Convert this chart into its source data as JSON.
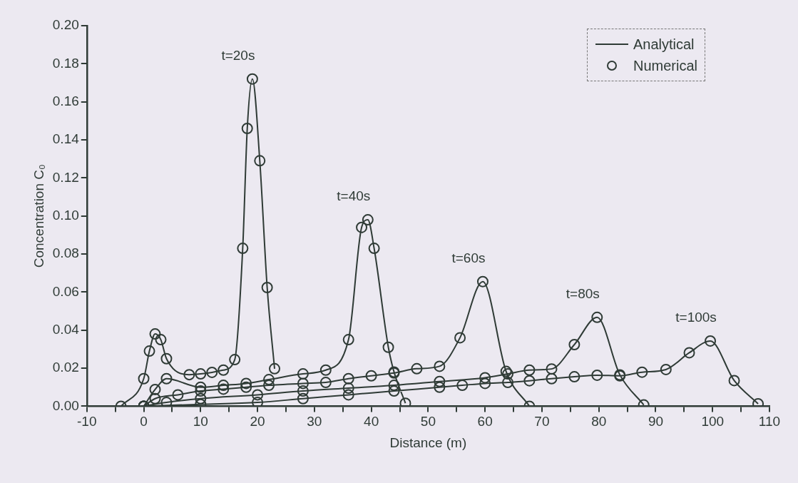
{
  "chart_data": {
    "type": "line",
    "xlabel": "Distance (m)",
    "ylabel": "Concentration C₀",
    "xlim": [
      -10,
      110
    ],
    "xticks": [
      -10,
      {
        "value": -5,
        "label": null
      },
      0,
      {
        "value": 5,
        "label": null
      },
      10,
      {
        "value": 15,
        "label": null
      },
      20,
      {
        "value": 25,
        "label": null
      },
      30,
      {
        "value": 35,
        "label": null
      },
      40,
      {
        "value": 45,
        "label": null
      },
      50,
      {
        "value": 55,
        "label": null
      },
      60,
      {
        "value": 65,
        "label": null
      },
      70,
      {
        "value": 75,
        "label": null
      },
      80,
      {
        "value": 85,
        "label": null
      },
      90,
      {
        "value": 95,
        "label": null
      },
      100,
      {
        "value": 105,
        "label": null
      },
      110
    ],
    "ylim": [
      0,
      0.2
    ],
    "yticks": [
      {
        "value": 0,
        "label": "0.00"
      },
      {
        "value": 0.02,
        "label": "0.02"
      },
      {
        "value": 0.04,
        "label": "0.04"
      },
      {
        "value": 0.06,
        "label": "0.06"
      },
      {
        "value": 0.08,
        "label": "0.08"
      },
      {
        "value": 0.1,
        "label": "0.10"
      },
      {
        "value": 0.12,
        "label": "0.12"
      },
      {
        "value": 0.14,
        "label": "0.14"
      },
      {
        "value": 0.16,
        "label": "0.16"
      },
      {
        "value": 0.18,
        "label": "0.18"
      },
      {
        "value": 0.2,
        "label": "0.20"
      }
    ],
    "grid": false,
    "legend": "top right",
    "series": [
      {
        "name": "Analytical",
        "type": "line",
        "marker": "none",
        "color": "#2f3b36",
        "x": [
          -4,
          0,
          1,
          2,
          3,
          4,
          8,
          10,
          12,
          14,
          16,
          17.4,
          18.2,
          19.1,
          20.4,
          21.7,
          23,
          null,
          0,
          2,
          4,
          10,
          14,
          18,
          22,
          28,
          32,
          36,
          38.3,
          39.4,
          40.5,
          43,
          44,
          46,
          null,
          0,
          2,
          6,
          10,
          14,
          18,
          22,
          28,
          32,
          36,
          40,
          44,
          48,
          52,
          55.6,
          59.6,
          63.7,
          67.8,
          null,
          0,
          4,
          10,
          20,
          28,
          36,
          44,
          52,
          60,
          64,
          67.8,
          71.7,
          75.7,
          79.7,
          83.7,
          87.9,
          null,
          0,
          10,
          20,
          28,
          36,
          44,
          52,
          56,
          60,
          64,
          67.8,
          71.7,
          75.7,
          79.7,
          83.7,
          87.6,
          91.8,
          95.9,
          99.6,
          103.8,
          108
        ],
        "values": [
          0,
          0.0145,
          0.029,
          0.038,
          0.035,
          0.025,
          0.0166,
          0.017,
          0.0178,
          0.019,
          0.0245,
          0.083,
          0.146,
          0.172,
          0.129,
          0.0624,
          0.0197,
          null,
          0,
          0.0088,
          0.0145,
          0.01,
          0.011,
          0.012,
          0.014,
          0.017,
          0.019,
          0.035,
          0.094,
          0.098,
          0.083,
          0.031,
          0.018,
          0.0016,
          null,
          0,
          0.004,
          0.006,
          0.008,
          0.009,
          0.01,
          0.011,
          0.012,
          0.0125,
          0.0145,
          0.016,
          0.0175,
          0.0197,
          0.021,
          0.036,
          0.0655,
          0.0183,
          0,
          null,
          0,
          0.002,
          0.004,
          0.006,
          0.008,
          0.0095,
          0.011,
          0.013,
          0.015,
          0.017,
          0.019,
          0.0196,
          0.0324,
          0.0467,
          0.0165,
          0.0007,
          null,
          0,
          0.001,
          0.002,
          0.004,
          0.006,
          0.008,
          0.01,
          0.011,
          0.012,
          0.0125,
          0.0134,
          0.0145,
          0.0155,
          0.0163,
          0.016,
          0.0179,
          0.0193,
          0.0281,
          0.0343,
          0.0135,
          0.0013
        ]
      },
      {
        "name": "Numerical",
        "type": "scatter",
        "marker": "circle",
        "color": "#2f3b36",
        "x": [
          -4,
          0,
          1,
          2,
          3,
          4,
          8,
          10,
          12,
          14,
          16,
          17.4,
          18.2,
          19.1,
          20.4,
          21.7,
          23,
          0,
          2,
          4,
          10,
          14,
          18,
          22,
          28,
          32,
          36,
          38.3,
          39.4,
          40.5,
          43,
          44,
          46,
          0,
          2,
          6,
          10,
          14,
          18,
          22,
          28,
          32,
          36,
          40,
          44,
          48,
          52,
          55.6,
          59.6,
          63.7,
          67.8,
          0,
          4,
          10,
          20,
          28,
          36,
          44,
          52,
          60,
          64,
          67.8,
          71.7,
          75.7,
          79.7,
          83.7,
          87.9,
          0,
          10,
          20,
          28,
          36,
          44,
          52,
          56,
          60,
          64,
          67.8,
          71.7,
          75.7,
          79.7,
          83.7,
          87.6,
          91.8,
          95.9,
          99.6,
          103.8,
          108
        ],
        "values": [
          0,
          0.0145,
          0.029,
          0.038,
          0.035,
          0.025,
          0.0166,
          0.017,
          0.0178,
          0.019,
          0.0245,
          0.083,
          0.146,
          0.172,
          0.129,
          0.0624,
          0.0197,
          0,
          0.0088,
          0.0145,
          0.01,
          0.011,
          0.012,
          0.014,
          0.017,
          0.019,
          0.035,
          0.094,
          0.098,
          0.083,
          0.031,
          0.018,
          0.0016,
          0,
          0.004,
          0.006,
          0.008,
          0.009,
          0.01,
          0.011,
          0.012,
          0.0125,
          0.0145,
          0.016,
          0.0175,
          0.0197,
          0.021,
          0.036,
          0.0655,
          0.0183,
          0,
          0,
          0.002,
          0.004,
          0.006,
          0.008,
          0.0095,
          0.011,
          0.013,
          0.015,
          0.017,
          0.019,
          0.0196,
          0.0324,
          0.0467,
          0.0165,
          0.0007,
          0,
          0.001,
          0.002,
          0.004,
          0.006,
          0.008,
          0.01,
          0.011,
          0.012,
          0.0125,
          0.0134,
          0.0145,
          0.0155,
          0.0163,
          0.016,
          0.0179,
          0.0193,
          0.0281,
          0.0343,
          0.0135,
          0.0013
        ]
      }
    ],
    "annotations": [
      "t=20s",
      "t=40s",
      "t=60s",
      "t=80s",
      "t=100s"
    ]
  }
}
